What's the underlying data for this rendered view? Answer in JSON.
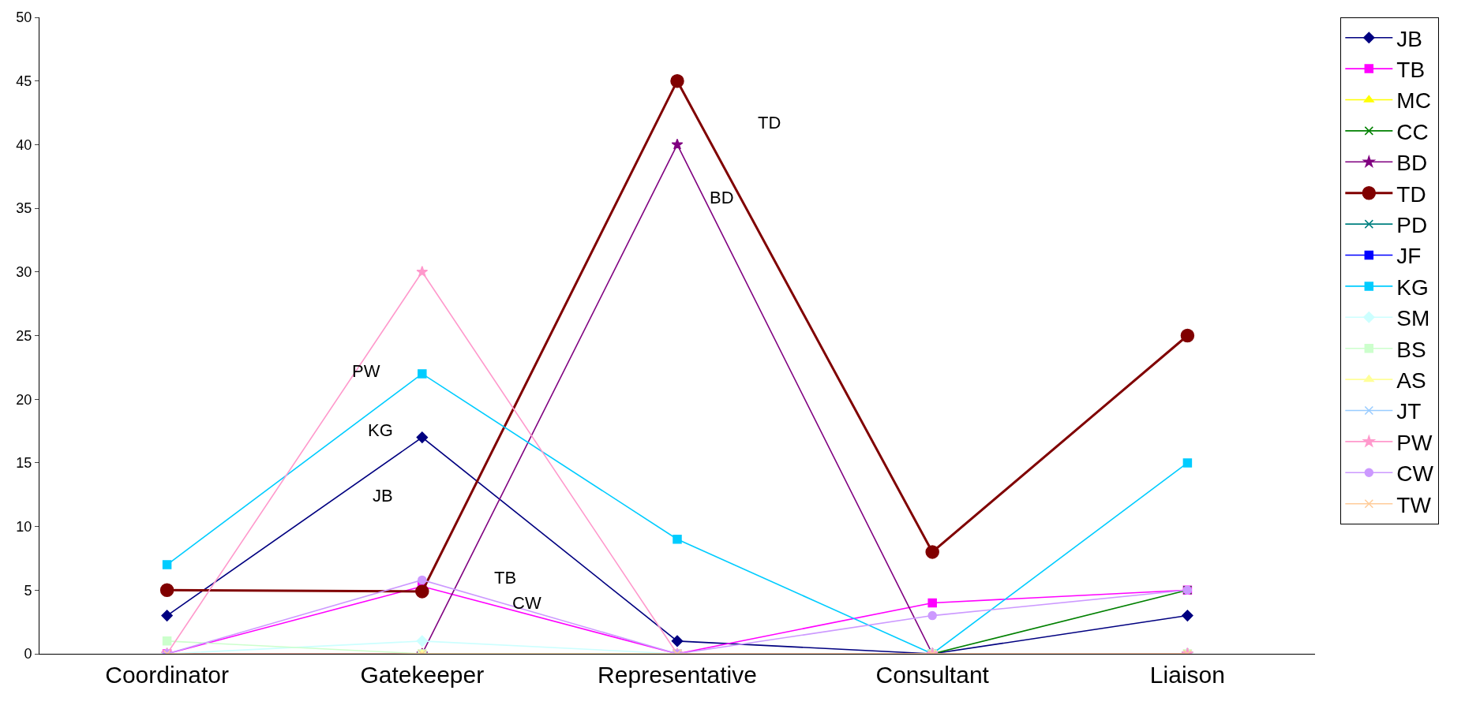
{
  "chart_data": {
    "type": "line",
    "categories": [
      "Coordinator",
      "Gatekeeper",
      "Representative",
      "Consultant",
      "Liaison"
    ],
    "ylim": [
      0,
      50
    ],
    "yticks": [
      0,
      5,
      10,
      15,
      20,
      25,
      30,
      35,
      40,
      45,
      50
    ],
    "legend": "right",
    "series": [
      {
        "name": "JB",
        "color": "#000080",
        "marker": "diamond",
        "values": [
          3,
          17,
          1,
          0,
          3
        ]
      },
      {
        "name": "TB",
        "color": "#ff00ff",
        "marker": "square",
        "values": [
          0,
          5.3,
          0,
          4,
          5
        ]
      },
      {
        "name": "MC",
        "color": "#ffff00",
        "marker": "triangle",
        "values": [
          null,
          null,
          null,
          null,
          null
        ]
      },
      {
        "name": "CC",
        "color": "#008000",
        "marker": "cross",
        "values": [
          null,
          null,
          null,
          0,
          5
        ]
      },
      {
        "name": "BD",
        "color": "#800080",
        "marker": "star",
        "values": [
          0,
          0,
          40,
          0,
          0
        ]
      },
      {
        "name": "TD",
        "color": "#800000",
        "marker": "circle",
        "values": [
          5,
          4.9,
          45,
          8,
          25
        ]
      },
      {
        "name": "PD",
        "color": "#008080",
        "marker": "cross",
        "values": [
          null,
          null,
          null,
          null,
          null
        ]
      },
      {
        "name": "JF",
        "color": "#0000ff",
        "marker": "square",
        "values": [
          null,
          null,
          null,
          null,
          null
        ]
      },
      {
        "name": "KG",
        "color": "#00ccff",
        "marker": "square",
        "values": [
          7,
          22,
          9,
          0,
          15
        ]
      },
      {
        "name": "SM",
        "color": "#ccffff",
        "marker": "diamond",
        "values": [
          0,
          1,
          0,
          0,
          0
        ]
      },
      {
        "name": "BS",
        "color": "#ccffcc",
        "marker": "square",
        "values": [
          1,
          0,
          0,
          0,
          0
        ]
      },
      {
        "name": "AS",
        "color": "#ffff99",
        "marker": "triangle",
        "values": [
          null,
          0,
          null,
          null,
          null
        ]
      },
      {
        "name": "JT",
        "color": "#99ccff",
        "marker": "cross",
        "values": [
          null,
          null,
          null,
          null,
          null
        ]
      },
      {
        "name": "PW",
        "color": "#ff99cc",
        "marker": "star",
        "values": [
          0,
          30,
          0,
          0,
          0
        ]
      },
      {
        "name": "CW",
        "color": "#cc99ff",
        "marker": "circle",
        "values": [
          0,
          5.8,
          0,
          3,
          5
        ]
      },
      {
        "name": "TW",
        "color": "#ffcc99",
        "marker": "cross",
        "values": [
          0,
          0,
          0,
          0,
          0
        ]
      }
    ],
    "annotations": [
      "TD",
      "BD",
      "PW",
      "KG",
      "JB",
      "TB",
      "CW"
    ]
  }
}
